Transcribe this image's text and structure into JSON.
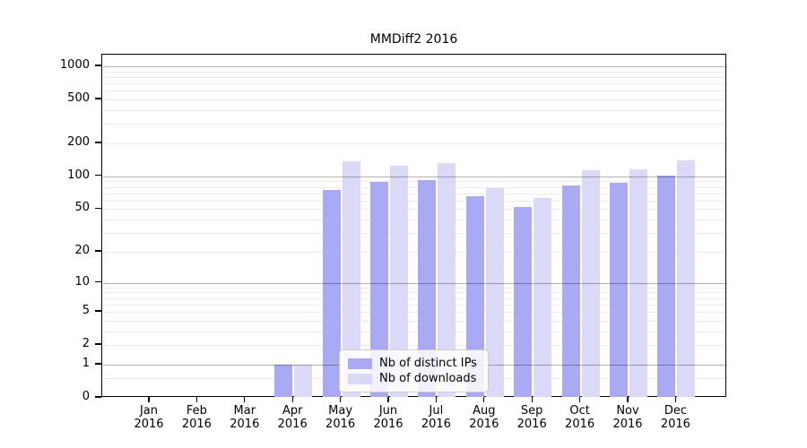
{
  "chart_data": {
    "type": "bar",
    "title": "MMDiff2 2016",
    "x_months": [
      "Jan",
      "Feb",
      "Mar",
      "Apr",
      "May",
      "Jun",
      "Jul",
      "Aug",
      "Sep",
      "Oct",
      "Nov",
      "Dec"
    ],
    "x_year": "2016",
    "categories": [
      "Jan 2016",
      "Feb 2016",
      "Mar 2016",
      "Apr 2016",
      "May 2016",
      "Jun 2016",
      "Jul 2016",
      "Aug 2016",
      "Sep 2016",
      "Oct 2016",
      "Nov 2016",
      "Dec 2016"
    ],
    "series": [
      {
        "name": "Nb of distinct IPs",
        "color": "#a9a9f4",
        "values": [
          0,
          0,
          0,
          1,
          75,
          89,
          92,
          66,
          52,
          82,
          88,
          101
        ]
      },
      {
        "name": "Nb of downloads",
        "color": "#dadaf8",
        "values": [
          0,
          0,
          0,
          1,
          137,
          126,
          132,
          78,
          63,
          113,
          116,
          140
        ]
      }
    ],
    "y_ticks": [
      0,
      1,
      2,
      5,
      10,
      20,
      50,
      100,
      200,
      500,
      1000
    ],
    "y_tick_labels": [
      "0",
      "1",
      "2",
      "5",
      "10",
      "20",
      "50",
      "100",
      "200",
      "500",
      "1000"
    ],
    "y_scale": "log10(1+v)",
    "ylim": [
      0,
      1270
    ],
    "xlabel": "",
    "ylabel": "",
    "grid": "major-and-minor",
    "legend_position": "lower center",
    "colors": {
      "bar_dark": "#a9a9f4",
      "bar_light": "#dadaf8",
      "grid_major": "#b0b0b0",
      "grid_minor": "#ebebeb",
      "axis": "#000000",
      "background": "#ffffff"
    }
  }
}
